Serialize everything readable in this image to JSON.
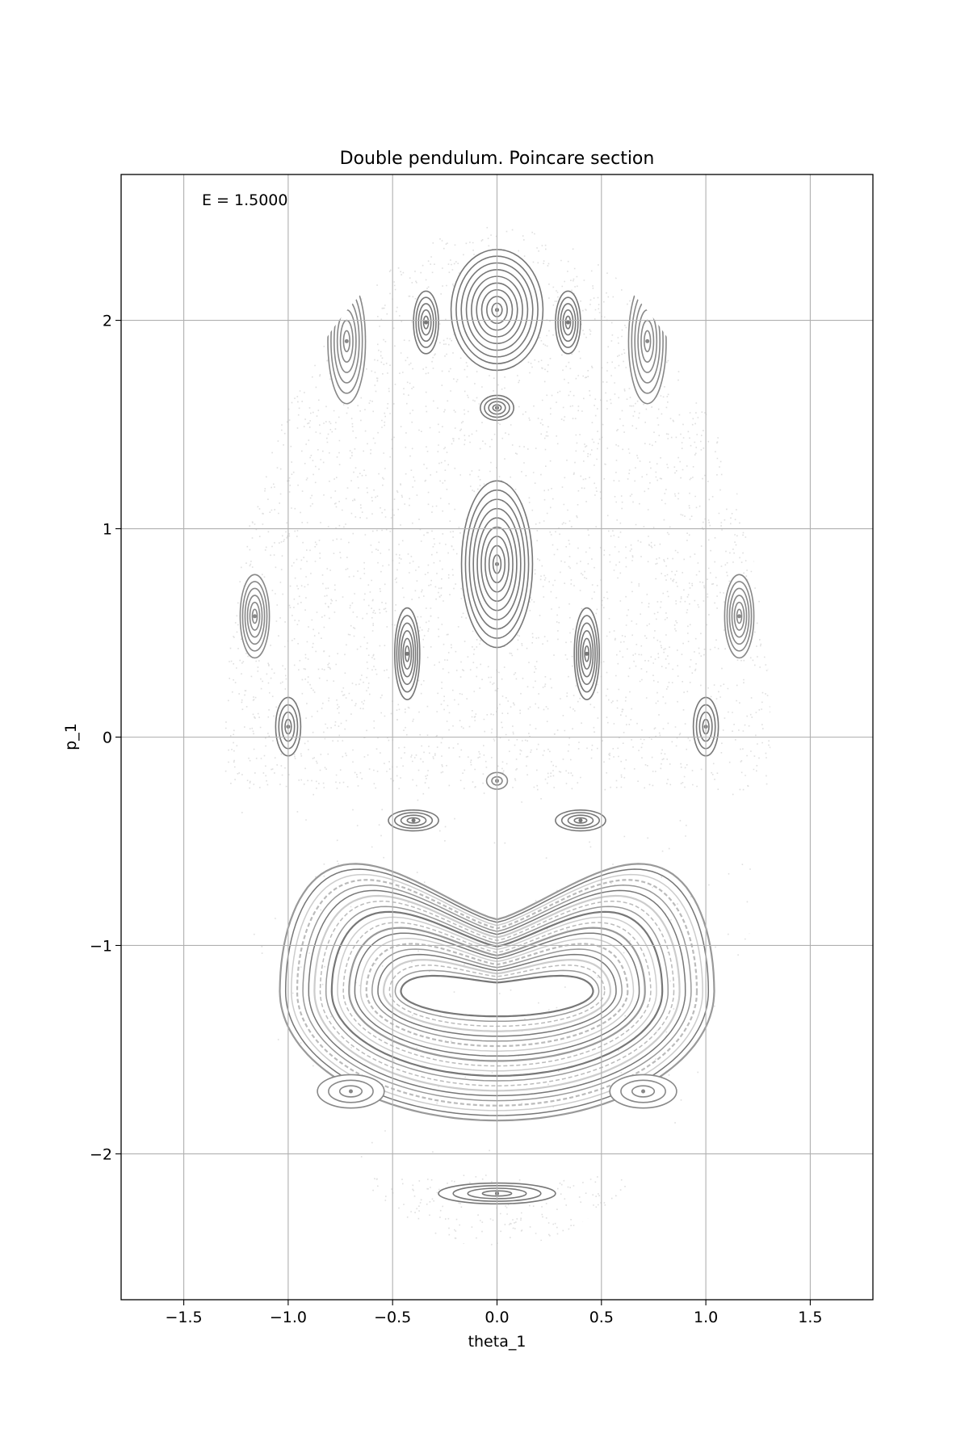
{
  "chart_data": {
    "type": "scatter",
    "title": "Double pendulum. Poincare section",
    "xlabel": "theta_1",
    "ylabel": "p_1",
    "xlim": [
      -1.8,
      1.8
    ],
    "ylim": [
      -2.7,
      2.7
    ],
    "grid": true,
    "annotation": "E = 1.5000",
    "x_ticks": [
      -1.5,
      -1.0,
      -0.5,
      0.0,
      0.5,
      1.0,
      1.5
    ],
    "x_tick_labels": [
      "−1.5",
      "−1.0",
      "−0.5",
      "0.0",
      "0.5",
      "1.0",
      "1.5"
    ],
    "y_ticks": [
      -2,
      -1,
      0,
      1,
      2
    ],
    "y_tick_labels": [
      "−2",
      "−1",
      "0",
      "1",
      "2"
    ],
    "region_boundary": {
      "theta_1_max": 1.31,
      "p_1_max": 2.45,
      "p_1_min": -2.45
    },
    "islands": [
      {
        "theta_1": 0.0,
        "p_1": 2.05,
        "half_width": 0.22,
        "half_height": 0.29,
        "rings": 9,
        "color": "#777777"
      },
      {
        "theta_1": 0.0,
        "p_1": 1.58,
        "half_width": 0.08,
        "half_height": 0.06,
        "rings": 4,
        "color": "#777777"
      },
      {
        "theta_1": 0.0,
        "p_1": 0.83,
        "half_width": 0.17,
        "half_height": 0.4,
        "rings": 9,
        "color": "#777777"
      },
      {
        "theta_1": -0.34,
        "p_1": 1.99,
        "half_width": 0.06,
        "half_height": 0.15,
        "rings": 5,
        "color": "#777777"
      },
      {
        "theta_1": 0.34,
        "p_1": 1.99,
        "half_width": 0.06,
        "half_height": 0.15,
        "rings": 5,
        "color": "#777777"
      },
      {
        "theta_1": -0.72,
        "p_1": 1.9,
        "half_width": 0.09,
        "half_height": 0.3,
        "rings": 6,
        "color": "#888888"
      },
      {
        "theta_1": 0.72,
        "p_1": 1.9,
        "half_width": 0.09,
        "half_height": 0.3,
        "rings": 6,
        "color": "#888888"
      },
      {
        "theta_1": -1.16,
        "p_1": 0.58,
        "half_width": 0.07,
        "half_height": 0.2,
        "rings": 6,
        "color": "#888888"
      },
      {
        "theta_1": 1.16,
        "p_1": 0.58,
        "half_width": 0.07,
        "half_height": 0.2,
        "rings": 6,
        "color": "#888888"
      },
      {
        "theta_1": -0.43,
        "p_1": 0.4,
        "half_width": 0.06,
        "half_height": 0.22,
        "rings": 6,
        "color": "#777777"
      },
      {
        "theta_1": 0.43,
        "p_1": 0.4,
        "half_width": 0.06,
        "half_height": 0.22,
        "rings": 6,
        "color": "#777777"
      },
      {
        "theta_1": -1.0,
        "p_1": 0.05,
        "half_width": 0.06,
        "half_height": 0.14,
        "rings": 4,
        "color": "#777777"
      },
      {
        "theta_1": 1.0,
        "p_1": 0.05,
        "half_width": 0.06,
        "half_height": 0.14,
        "rings": 4,
        "color": "#777777"
      },
      {
        "theta_1": -0.4,
        "p_1": -0.4,
        "half_width": 0.12,
        "half_height": 0.05,
        "rings": 4,
        "color": "#777777"
      },
      {
        "theta_1": 0.4,
        "p_1": -0.4,
        "half_width": 0.12,
        "half_height": 0.05,
        "rings": 4,
        "color": "#777777"
      },
      {
        "theta_1": -0.7,
        "p_1": -1.7,
        "half_width": 0.16,
        "half_height": 0.08,
        "rings": 3,
        "color": "#888888"
      },
      {
        "theta_1": 0.7,
        "p_1": -1.7,
        "half_width": 0.16,
        "half_height": 0.08,
        "rings": 3,
        "color": "#888888"
      },
      {
        "theta_1": 0.0,
        "p_1": -2.19,
        "half_width": 0.28,
        "half_height": 0.05,
        "rings": 4,
        "color": "#777777"
      },
      {
        "theta_1": 0.0,
        "p_1": -0.21,
        "half_width": 0.05,
        "half_height": 0.04,
        "rings": 2,
        "color": "#888888"
      }
    ],
    "libration_curves": {
      "center_p_1": -1.22,
      "count": 22,
      "inner_half_width": 0.46,
      "outer_half_width": 1.04,
      "inner_drop": 0.12,
      "outer_drop": 0.62,
      "inner_rise": 0.14,
      "outer_rise": 1.15,
      "colors": [
        "#777777",
        "#999999",
        "#bbbbbb",
        "#cccccc"
      ]
    }
  }
}
